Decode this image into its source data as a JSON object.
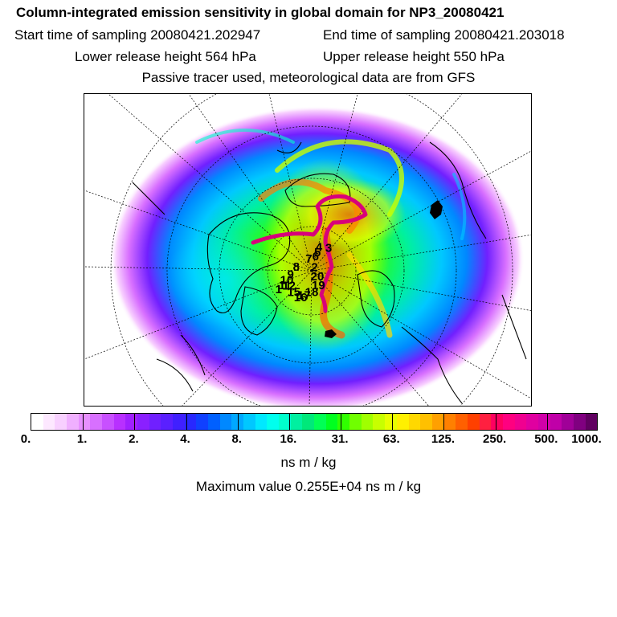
{
  "header": {
    "title": "Column-integrated emission sensitivity in global domain for NP3_20080421",
    "start_time": "Start time of sampling 20080421.202947",
    "end_time": "End time of sampling 20080421.203018",
    "lower_height": "Lower release height  564 hPa",
    "upper_height": "Upper release height  550 hPa",
    "note": "Passive tracer used, meteorological data are from GFS"
  },
  "map": {
    "projection": "north-polar-stereographic",
    "track_color": "#d8007a",
    "time_markers": [
      {
        "label": "1",
        "lon": -46,
        "lat": 62
      },
      {
        "label": "2",
        "lon": 95,
        "lat": 88
      },
      {
        "label": "3",
        "lon": 148,
        "lat": 72
      },
      {
        "label": "4",
        "lon": 170,
        "lat": 75
      },
      {
        "label": "5",
        "lon": 168,
        "lat": 79
      },
      {
        "label": "6",
        "lon": 170,
        "lat": 82
      },
      {
        "label": "7",
        "lon": -150,
        "lat": 84
      },
      {
        "label": "8",
        "lon": -80,
        "lat": 79
      },
      {
        "label": "9",
        "lon": -60,
        "lat": 74
      },
      {
        "label": "10",
        "lon": -52,
        "lat": 70
      },
      {
        "label": "11",
        "lon": -45,
        "lat": 67
      },
      {
        "label": "12",
        "lon": -40,
        "lat": 69
      },
      {
        "label": "15",
        "lon": -25,
        "lat": 68
      },
      {
        "label": "16",
        "lon": -10,
        "lat": 67
      },
      {
        "label": "17",
        "lon": -5,
        "lat": 69
      },
      {
        "label": "18",
        "lon": 10,
        "lat": 72
      },
      {
        "label": "19",
        "lon": 30,
        "lat": 76
      },
      {
        "label": "20",
        "lon": 40,
        "lat": 82
      }
    ]
  },
  "colorbar": {
    "colors": [
      "#ffffff",
      "#fde8ff",
      "#f8d0ff",
      "#f0b0ff",
      "#e890ff",
      "#d870ff",
      "#c850ff",
      "#b830ff",
      "#a020ff",
      "#8a20ff",
      "#7020ff",
      "#5a20ff",
      "#4020ff",
      "#2828ff",
      "#1040ff",
      "#0060ff",
      "#0088ff",
      "#00a8ff",
      "#00c8ff",
      "#00e8ff",
      "#00ffee",
      "#00ffcc",
      "#00f0a0",
      "#00e87a",
      "#00ff55",
      "#00ff20",
      "#30ff00",
      "#70ff00",
      "#a0ff00",
      "#c8ff00",
      "#e8ff00",
      "#fff000",
      "#ffd800",
      "#ffc000",
      "#ffa000",
      "#ff8000",
      "#ff6000",
      "#ff4000",
      "#ff2040",
      "#ff0060",
      "#ff0080",
      "#f00090",
      "#e000a0",
      "#d000a8",
      "#c000a8",
      "#a00098",
      "#800080",
      "#600060"
    ],
    "ticks": [
      "0.",
      "1.",
      "2.",
      "4.",
      "8.",
      "16.",
      "31.",
      "63.",
      "125.",
      "250.",
      "500.",
      "1000."
    ],
    "unit": "ns m / kg",
    "max_value": "Maximum value  0.255E+04 ns m / kg"
  }
}
